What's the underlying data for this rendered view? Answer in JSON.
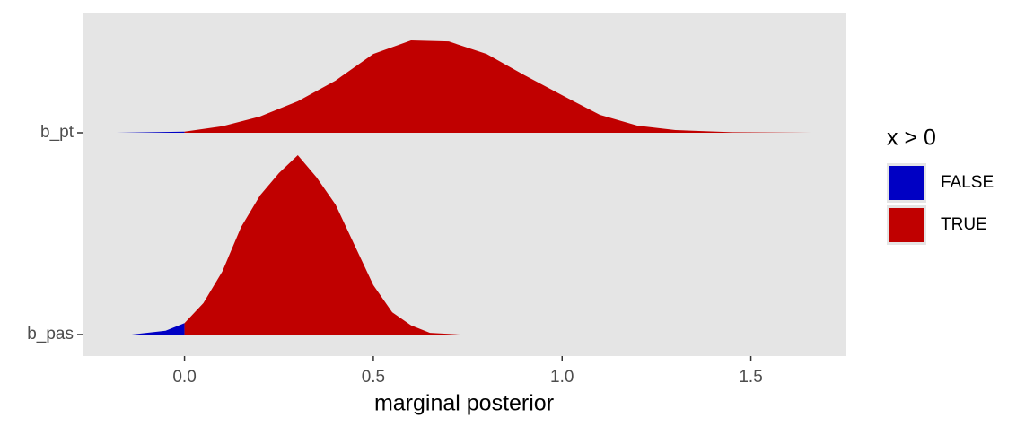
{
  "chart_data": {
    "type": "ridgeline",
    "x_label": "marginal posterior",
    "legend_title": "x > 0",
    "series": [
      {
        "name": "FALSE",
        "color": "#0000c4"
      },
      {
        "name": "TRUE",
        "color": "#c00000"
      }
    ],
    "ridges": [
      {
        "name": "b_pt",
        "x": [
          -0.18,
          0,
          0.1,
          0.2,
          0.3,
          0.4,
          0.5,
          0.6,
          0.7,
          0.8,
          0.9,
          1.0,
          1.1,
          1.2,
          1.3,
          1.45,
          1.66
        ],
        "values": [
          0,
          0.02,
          0.12,
          0.3,
          0.58,
          0.96,
          1.45,
          1.7,
          1.68,
          1.45,
          1.06,
          0.69,
          0.33,
          0.13,
          0.05,
          0.01,
          0
        ]
      },
      {
        "name": "b_pas",
        "x": [
          -0.14,
          -0.05,
          0,
          0.05,
          0.1,
          0.15,
          0.2,
          0.25,
          0.3,
          0.35,
          0.4,
          0.45,
          0.5,
          0.55,
          0.6,
          0.65,
          0.73
        ],
        "values": [
          0,
          0.07,
          0.21,
          0.58,
          1.16,
          1.98,
          2.56,
          2.97,
          3.3,
          2.89,
          2.39,
          1.65,
          0.91,
          0.41,
          0.17,
          0.03,
          0
        ]
      }
    ],
    "xlim": [
      -0.27,
      1.753
    ],
    "xticks": [
      {
        "value": 0,
        "label": "0.0"
      },
      0.5,
      {
        "value": 1,
        "label": "1.0"
      },
      1.5
    ],
    "grid": false,
    "legend": "right"
  }
}
